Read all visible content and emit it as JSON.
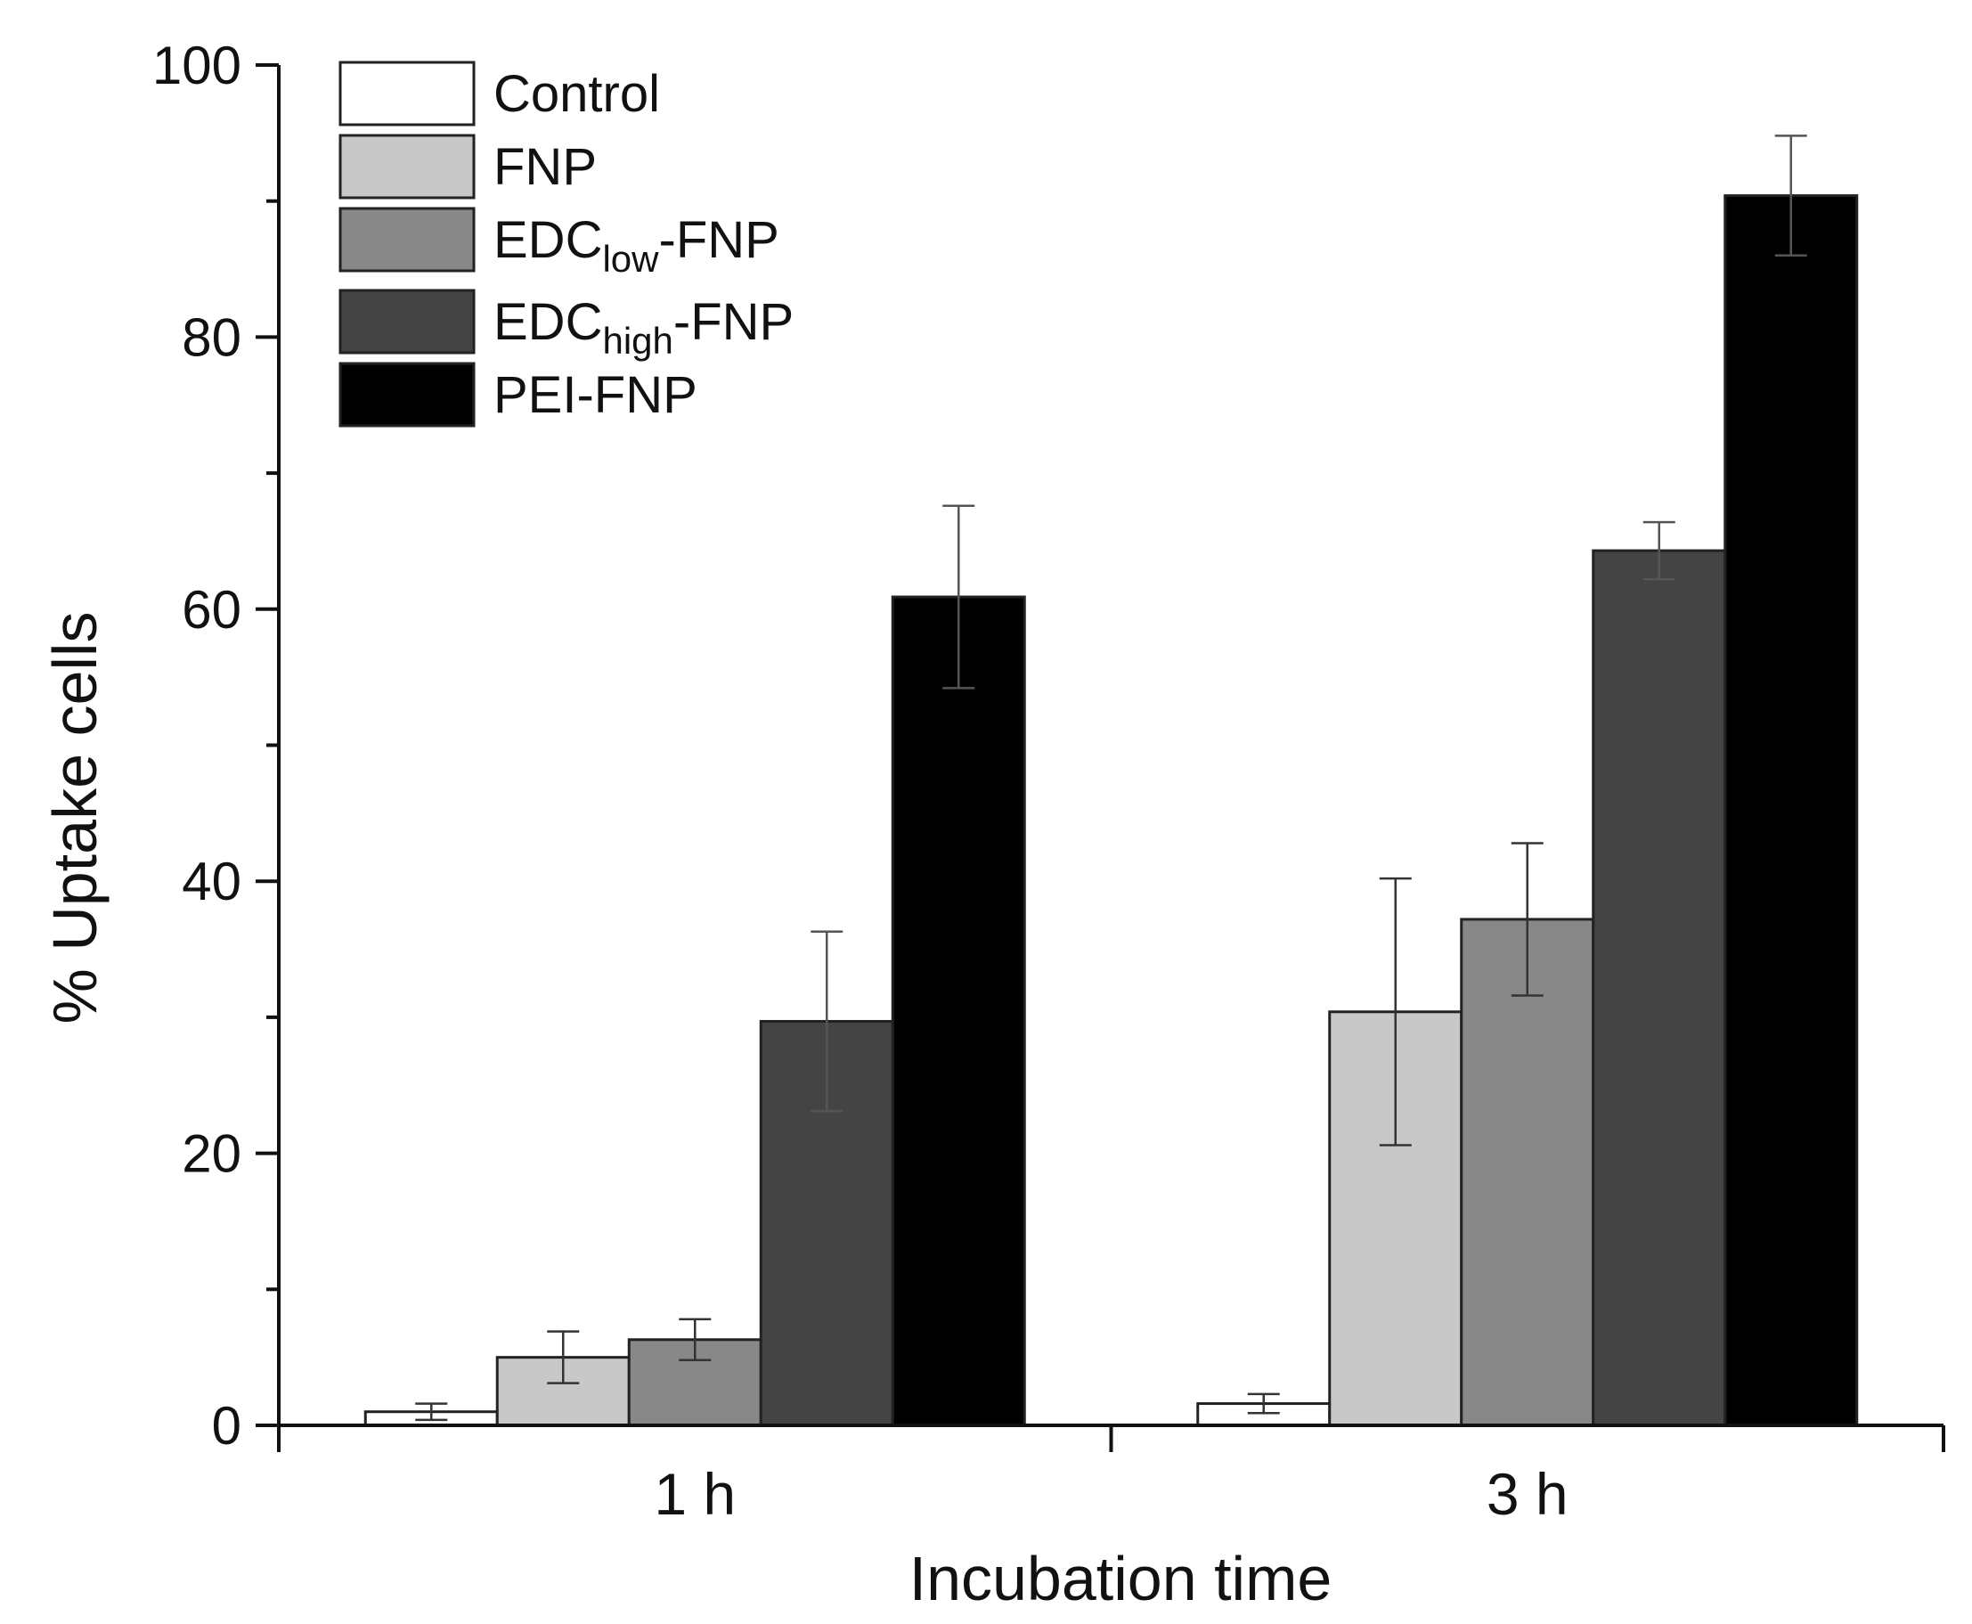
{
  "chart_data": {
    "type": "bar",
    "title": "",
    "xlabel": "Incubation time",
    "ylabel": "% Uptake cells",
    "ylim": [
      0,
      100
    ],
    "yticks": [
      0,
      20,
      40,
      60,
      80,
      100
    ],
    "y_minor_step": 10,
    "grid": false,
    "legend_position": "top-left",
    "categories": [
      "1 h",
      "3 h"
    ],
    "series": [
      {
        "name": "Control",
        "legend": {
          "main": "Control",
          "sub": "",
          "suffix": ""
        },
        "color": "#ffffff",
        "values": [
          1.0,
          1.6
        ],
        "errors": [
          0.6,
          0.7
        ]
      },
      {
        "name": "FNP",
        "legend": {
          "main": "FNP",
          "sub": "",
          "suffix": ""
        },
        "color": "#c8c8c8",
        "values": [
          5.0,
          30.4
        ],
        "errors": [
          1.9,
          9.8
        ]
      },
      {
        "name": "EDClow-FNP",
        "legend": {
          "main": "EDC",
          "sub": "low",
          "suffix": "-FNP"
        },
        "color": "#888888",
        "values": [
          6.3,
          37.2
        ],
        "errors": [
          1.5,
          5.6
        ]
      },
      {
        "name": "EDChigh-FNP",
        "legend": {
          "main": "EDC",
          "sub": "high",
          "suffix": "-FNP"
        },
        "color": "#444444",
        "values": [
          29.7,
          64.3
        ],
        "errors": [
          6.6,
          2.1
        ]
      },
      {
        "name": "PEI-FNP",
        "legend": {
          "main": "PEI-FNP",
          "sub": "",
          "suffix": ""
        },
        "color": "#000000",
        "values": [
          60.9,
          90.4
        ],
        "errors": [
          6.7,
          4.4
        ]
      }
    ]
  }
}
